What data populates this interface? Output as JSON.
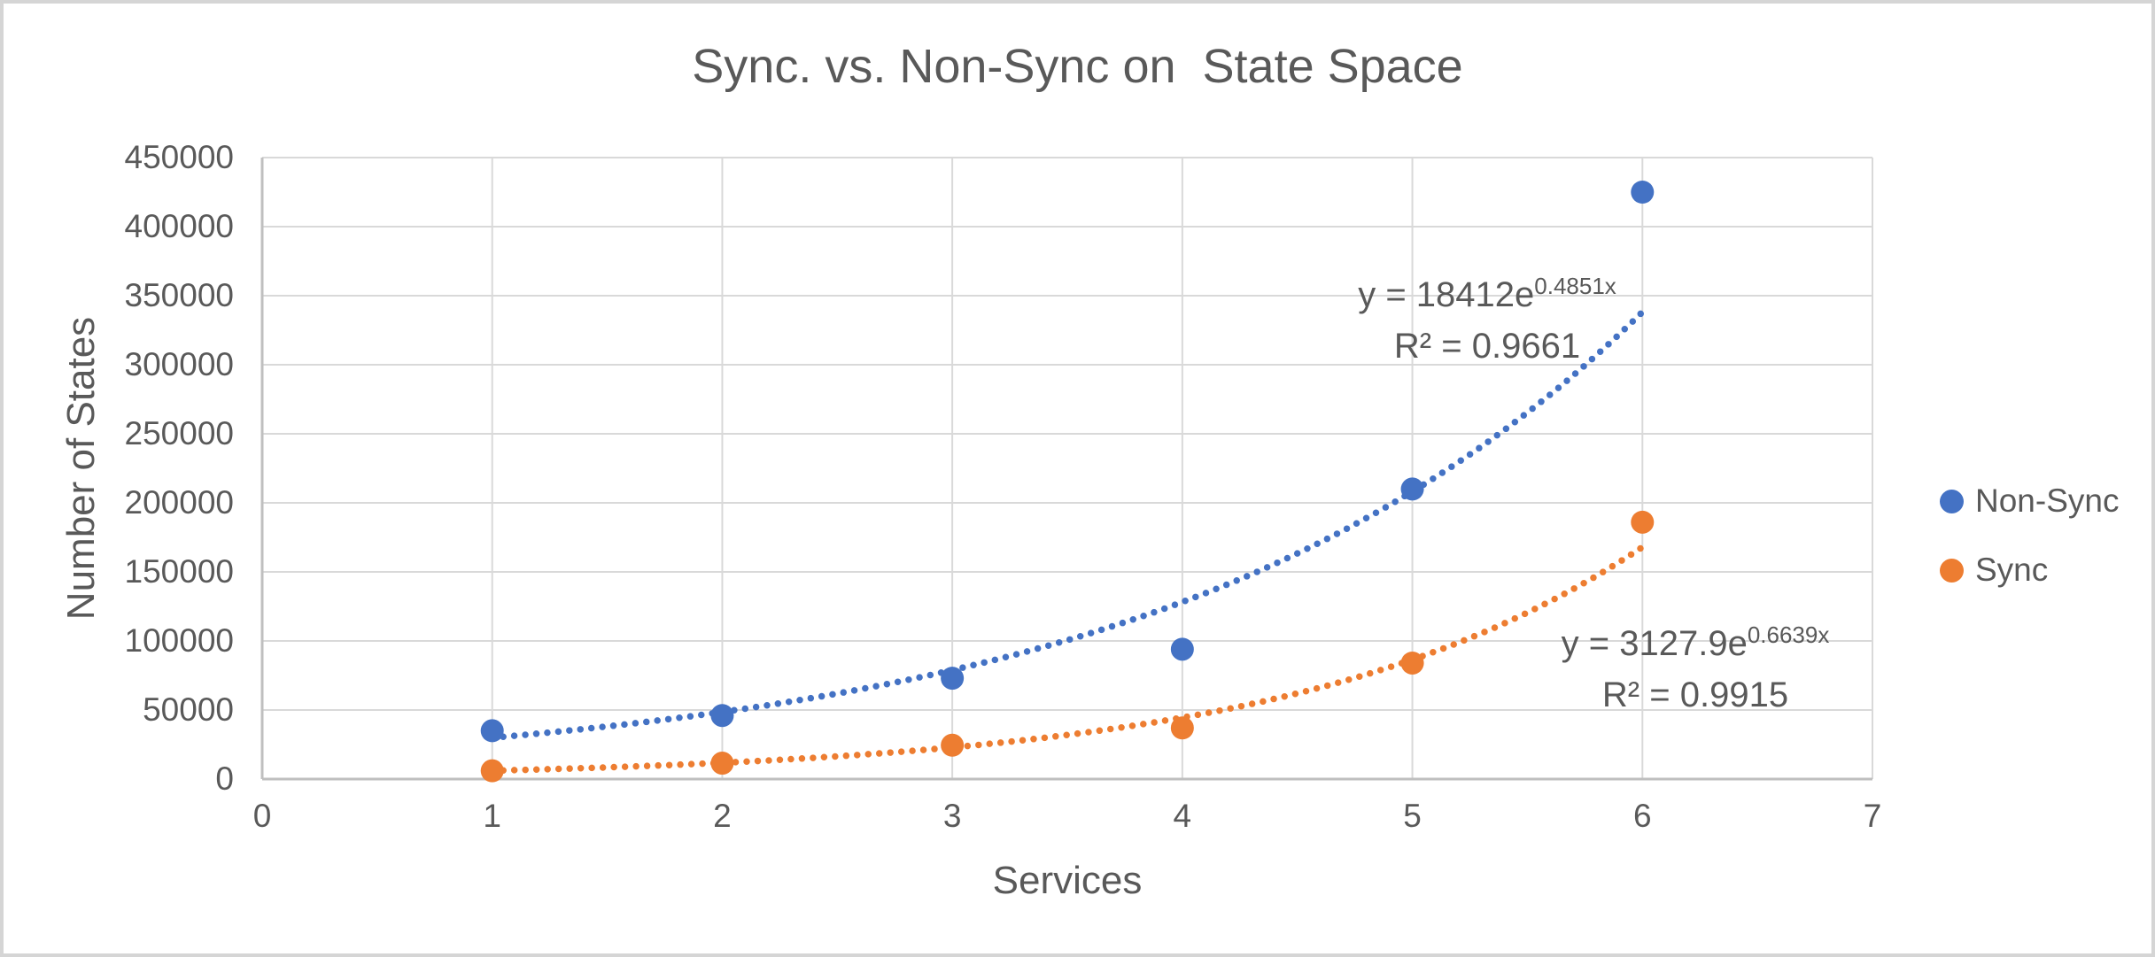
{
  "theme": {
    "text_color": "#595959",
    "gridline_color": "#D9D9D9",
    "axis_line_color": "#BFBFBF",
    "background": "#FFFFFF",
    "frame_border_color": "#D5D5D5"
  },
  "chart_data": {
    "type": "scatter",
    "title": "Sync. vs. Non-Sync on  State Space",
    "xlabel": "Services",
    "ylabel": "Number of States",
    "xlim": [
      0,
      7
    ],
    "ylim": [
      0,
      450000
    ],
    "x_ticks": [
      0,
      1,
      2,
      3,
      4,
      5,
      6,
      7
    ],
    "y_ticks": [
      0,
      50000,
      100000,
      150000,
      200000,
      250000,
      300000,
      350000,
      400000,
      450000
    ],
    "grid": true,
    "legend_position": "right",
    "x": [
      1,
      2,
      3,
      4,
      5,
      6
    ],
    "series": [
      {
        "name": "Non-Sync",
        "color": "#4472C4",
        "values": [
          35000,
          46000,
          73000,
          94000,
          210000,
          425000
        ],
        "trendline": {
          "type": "exponential",
          "style": "dotted",
          "coefficient": 18412,
          "exponent_rate": 0.4851,
          "x_range": [
            1,
            6
          ],
          "equation_base": "y = 18412e",
          "equation_exponent": "0.4851x",
          "r_squared_label": "R² = 0.9661"
        }
      },
      {
        "name": "Sync",
        "color": "#ED7D31",
        "values": [
          6000,
          11500,
          24500,
          37000,
          84000,
          186000
        ],
        "trendline": {
          "type": "exponential",
          "style": "dotted",
          "coefficient": 3127.9,
          "exponent_rate": 0.6639,
          "x_range": [
            1,
            6
          ],
          "equation_base": "y = 3127.9e",
          "equation_exponent": "0.6639x",
          "r_squared_label": "R² = 0.9915"
        }
      }
    ]
  }
}
